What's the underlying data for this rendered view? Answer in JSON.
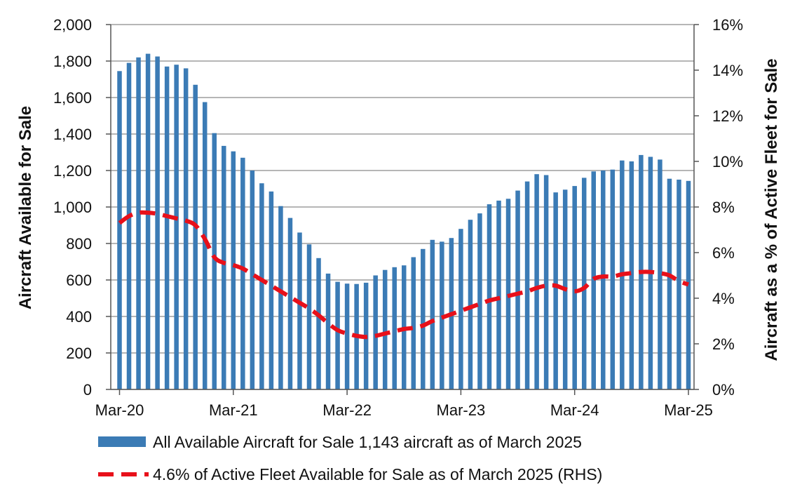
{
  "chart_data": {
    "type": "bar",
    "x": [
      "2020-03",
      "2020-04",
      "2020-05",
      "2020-06",
      "2020-07",
      "2020-08",
      "2020-09",
      "2020-10",
      "2020-11",
      "2020-12",
      "2021-01",
      "2021-02",
      "2021-03",
      "2021-04",
      "2021-05",
      "2021-06",
      "2021-07",
      "2021-08",
      "2021-09",
      "2021-10",
      "2021-11",
      "2021-12",
      "2022-01",
      "2022-02",
      "2022-03",
      "2022-04",
      "2022-05",
      "2022-06",
      "2022-07",
      "2022-08",
      "2022-09",
      "2022-10",
      "2022-11",
      "2022-12",
      "2023-01",
      "2023-02",
      "2023-03",
      "2023-04",
      "2023-05",
      "2023-06",
      "2023-07",
      "2023-08",
      "2023-09",
      "2023-10",
      "2023-11",
      "2023-12",
      "2024-01",
      "2024-02",
      "2024-03",
      "2024-04",
      "2024-05",
      "2024-06",
      "2024-07",
      "2024-08",
      "2024-09",
      "2024-10",
      "2024-11",
      "2024-12",
      "2025-01",
      "2025-02",
      "2025-03"
    ],
    "x_tick_labels": [
      "Mar-20",
      "Mar-21",
      "Mar-22",
      "Mar-23",
      "Mar-24",
      "Mar-25"
    ],
    "ylabel": "Aircraft  Available for Sale",
    "ylim": [
      0,
      2000
    ],
    "y_ticks": [
      "0",
      "200",
      "400",
      "600",
      "800",
      "1,000",
      "1,200",
      "1,400",
      "1,600",
      "1,800",
      "2,000"
    ],
    "y2label": "Aircraft  as a % of Active Fleet for Sale",
    "y2lim": [
      0,
      16
    ],
    "y2_ticks": [
      "0%",
      "2%",
      "4%",
      "6%",
      "8%",
      "10%",
      "12%",
      "14%",
      "16%"
    ],
    "grid": true,
    "legend_placement": "bottom",
    "series": [
      {
        "name": "All Available Aircraft for Sale 1,143 aircraft as of March 2025",
        "type": "bar",
        "axis": "left",
        "color": "#3B7BB5",
        "values": [
          1745,
          1790,
          1820,
          1840,
          1825,
          1770,
          1780,
          1760,
          1670,
          1575,
          1405,
          1335,
          1305,
          1270,
          1200,
          1130,
          1085,
          1005,
          940,
          860,
          795,
          720,
          635,
          590,
          580,
          578,
          585,
          625,
          655,
          670,
          680,
          725,
          770,
          820,
          810,
          830,
          880,
          930,
          965,
          1015,
          1035,
          1045,
          1090,
          1140,
          1180,
          1175,
          1080,
          1095,
          1115,
          1160,
          1195,
          1200,
          1205,
          1255,
          1250,
          1285,
          1275,
          1260,
          1155,
          1150,
          1143
        ]
      },
      {
        "name": "4.6% of Active Fleet Available for Sale as of March 2025 (RHS)",
        "type": "line",
        "style": "dashed",
        "axis": "right",
        "color": "#E8101A",
        "values": [
          7.3,
          7.6,
          7.75,
          7.75,
          7.7,
          7.6,
          7.5,
          7.4,
          7.2,
          6.6,
          5.8,
          5.55,
          5.45,
          5.3,
          5.05,
          4.8,
          4.55,
          4.3,
          4.05,
          3.8,
          3.55,
          3.25,
          2.9,
          2.6,
          2.45,
          2.35,
          2.3,
          2.35,
          2.45,
          2.55,
          2.65,
          2.7,
          2.8,
          3.0,
          3.15,
          3.3,
          3.45,
          3.6,
          3.75,
          3.9,
          4.0,
          4.1,
          4.2,
          4.3,
          4.45,
          4.55,
          4.55,
          4.4,
          4.3,
          4.45,
          4.85,
          4.95,
          4.95,
          5.05,
          5.1,
          5.15,
          5.15,
          5.1,
          5.0,
          4.75,
          4.6
        ]
      }
    ]
  }
}
